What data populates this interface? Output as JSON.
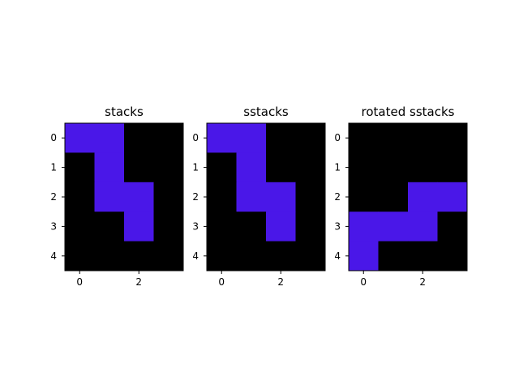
{
  "figure": {
    "background": "#ffffff"
  },
  "chart_data": [
    {
      "type": "heatmap",
      "title": "stacks",
      "x_ticks": [
        0,
        2
      ],
      "y_ticks": [
        0,
        1,
        2,
        3,
        4
      ],
      "x_range": [
        -0.5,
        3.5
      ],
      "y_range": [
        -0.5,
        4.5
      ],
      "colors": {
        "off": "#000000",
        "on": "#4a17e8"
      },
      "grid": [
        [
          1,
          1,
          0,
          0
        ],
        [
          0,
          1,
          0,
          0
        ],
        [
          0,
          1,
          1,
          0
        ],
        [
          0,
          0,
          1,
          0
        ],
        [
          0,
          0,
          0,
          0
        ]
      ]
    },
    {
      "type": "heatmap",
      "title": "sstacks",
      "x_ticks": [
        0,
        2
      ],
      "y_ticks": [
        0,
        1,
        2,
        3,
        4
      ],
      "x_range": [
        -0.5,
        3.5
      ],
      "y_range": [
        -0.5,
        4.5
      ],
      "colors": {
        "off": "#000000",
        "on": "#4a17e8"
      },
      "grid": [
        [
          1,
          1,
          0,
          0
        ],
        [
          0,
          1,
          0,
          0
        ],
        [
          0,
          1,
          1,
          0
        ],
        [
          0,
          0,
          1,
          0
        ],
        [
          0,
          0,
          0,
          0
        ]
      ]
    },
    {
      "type": "heatmap",
      "title": "rotated sstacks",
      "x_ticks": [
        0,
        2
      ],
      "y_ticks": [
        0,
        1,
        2,
        3,
        4
      ],
      "x_range": [
        -0.5,
        3.5
      ],
      "y_range": [
        -0.5,
        4.5
      ],
      "colors": {
        "off": "#000000",
        "on": "#4a17e8"
      },
      "grid": [
        [
          0,
          0,
          0,
          0
        ],
        [
          0,
          0,
          0,
          0
        ],
        [
          0,
          0,
          1,
          1
        ],
        [
          1,
          1,
          1,
          0
        ],
        [
          1,
          0,
          0,
          0
        ]
      ]
    }
  ]
}
